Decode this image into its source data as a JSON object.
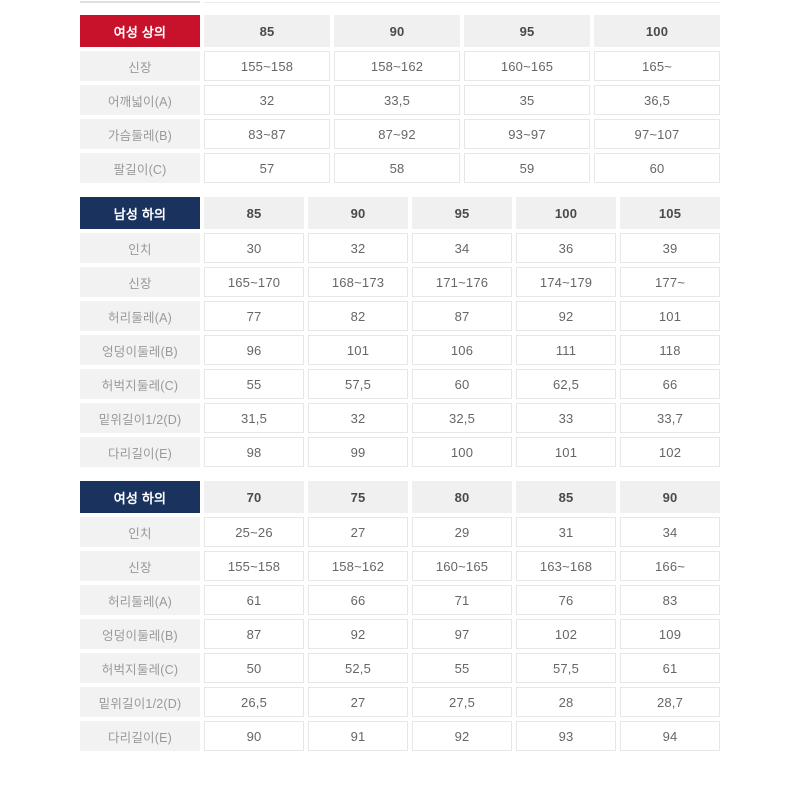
{
  "colors": {
    "women_top_header_bg": "#C8122B",
    "men_bottom_header_bg": "#1A335E",
    "women_bottom_header_bg": "#1A335E",
    "size_header_bg": "#f0f0f0",
    "label_cell_bg": "#f2f2f2",
    "value_cell_border": "#e7e7e7"
  },
  "tables": [
    {
      "id": "women-top",
      "title": "여성 상의",
      "title_bg": "#C8122B",
      "sizes": [
        "85",
        "90",
        "95",
        "100"
      ],
      "rows": [
        {
          "label": "신장",
          "values": [
            "155~158",
            "158~162",
            "160~165",
            "165~"
          ]
        },
        {
          "label": "어깨넓이(A)",
          "values": [
            "32",
            "33,5",
            "35",
            "36,5"
          ]
        },
        {
          "label": "가슴둘레(B)",
          "values": [
            "83~87",
            "87~92",
            "93~97",
            "97~107"
          ]
        },
        {
          "label": "팔길이(C)",
          "values": [
            "57",
            "58",
            "59",
            "60"
          ]
        }
      ]
    },
    {
      "id": "men-bottom",
      "title": "남성 하의",
      "title_bg": "#1A335E",
      "sizes": [
        "85",
        "90",
        "95",
        "100",
        "105"
      ],
      "rows": [
        {
          "label": "인치",
          "values": [
            "30",
            "32",
            "34",
            "36",
            "39"
          ]
        },
        {
          "label": "신장",
          "values": [
            "165~170",
            "168~173",
            "171~176",
            "174~179",
            "177~"
          ]
        },
        {
          "label": "허리둘레(A)",
          "values": [
            "77",
            "82",
            "87",
            "92",
            "101"
          ]
        },
        {
          "label": "엉덩이둘레(B)",
          "values": [
            "96",
            "101",
            "106",
            "111",
            "118"
          ]
        },
        {
          "label": "허벅지둘레(C)",
          "values": [
            "55",
            "57,5",
            "60",
            "62,5",
            "66"
          ]
        },
        {
          "label": "밑위길이1/2(D)",
          "values": [
            "31,5",
            "32",
            "32,5",
            "33",
            "33,7"
          ]
        },
        {
          "label": "다리길이(E)",
          "values": [
            "98",
            "99",
            "100",
            "101",
            "102"
          ]
        }
      ]
    },
    {
      "id": "women-bottom",
      "title": "여성 하의",
      "title_bg": "#1A335E",
      "sizes": [
        "70",
        "75",
        "80",
        "85",
        "90"
      ],
      "rows": [
        {
          "label": "인치",
          "values": [
            "25~26",
            "27",
            "29",
            "31",
            "34"
          ]
        },
        {
          "label": "신장",
          "values": [
            "155~158",
            "158~162",
            "160~165",
            "163~168",
            "166~"
          ]
        },
        {
          "label": "허리둘레(A)",
          "values": [
            "61",
            "66",
            "71",
            "76",
            "83"
          ]
        },
        {
          "label": "엉덩이둘레(B)",
          "values": [
            "87",
            "92",
            "97",
            "102",
            "109"
          ]
        },
        {
          "label": "허벅지둘레(C)",
          "values": [
            "50",
            "52,5",
            "55",
            "57,5",
            "61"
          ]
        },
        {
          "label": "밑위길이1/2(D)",
          "values": [
            "26,5",
            "27",
            "27,5",
            "28",
            "28,7"
          ]
        },
        {
          "label": "다리길이(E)",
          "values": [
            "90",
            "91",
            "92",
            "93",
            "94"
          ]
        }
      ]
    }
  ]
}
